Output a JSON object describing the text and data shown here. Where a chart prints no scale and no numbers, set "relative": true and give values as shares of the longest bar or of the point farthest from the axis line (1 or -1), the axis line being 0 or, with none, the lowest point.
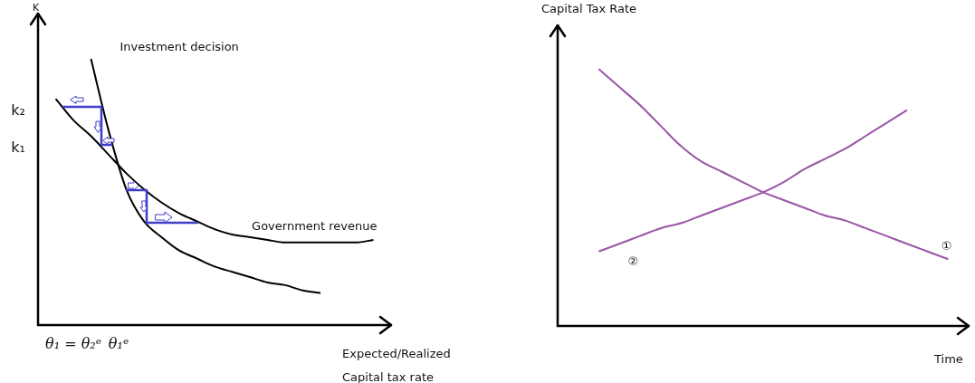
{
  "chart_data": [
    {
      "type": "line",
      "relative": true,
      "marker": "none",
      "ylabel": "K",
      "xlabel": "Expected/Realized Capital tax rate",
      "categories": [
        null,
        null,
        null,
        null,
        null,
        null,
        null,
        null,
        null,
        null,
        null,
        null,
        null,
        null,
        null,
        null,
        null,
        null,
        null,
        null,
        null
      ],
      "series": [
        {
          "name": "Investment decision",
          "color": "#000000",
          "values": [
            null,
            null,
            null,
            1,
            0.73,
            0.51,
            0.39,
            0.33,
            0.28,
            0.25,
            0.22,
            0.2,
            0.18,
            0.16,
            0.15,
            0.13,
            0.12,
            null,
            null,
            null,
            null
          ]
        },
        {
          "name": "Government revenue",
          "color": "#000000",
          "values": [
            null,
            0.85,
            0.77,
            0.71,
            0.64,
            0.57,
            0.51,
            0.46,
            0.42,
            0.39,
            0.36,
            0.34,
            0.33,
            0.32,
            0.31,
            0.31,
            0.31,
            0.31,
            0.31,
            0.32,
            null
          ]
        }
      ],
      "annotations": [
        "k₂",
        "k₁",
        "θ₁ = θ₂ᵉ",
        "θ₁ᵉ"
      ]
    },
    {
      "type": "line",
      "relative": true,
      "marker": "none",
      "ylabel": "Capital Tax Rate",
      "xlabel": "Time",
      "categories": [
        null,
        null,
        null,
        null,
        null,
        null,
        null,
        null,
        null,
        null,
        null,
        null,
        null,
        null,
        null,
        null,
        null,
        null,
        null,
        null,
        null
      ],
      "series": [
        {
          "name": "①",
          "color": "#9b54a8",
          "values": [
            null,
            null,
            1,
            0.93,
            0.86,
            0.78,
            0.7,
            0.64,
            0.6,
            0.56,
            0.52,
            0.49,
            0.46,
            0.43,
            0.41,
            0.38,
            0.35,
            0.32,
            0.29,
            0.26,
            null
          ]
        },
        {
          "name": "②",
          "color": "#9b54a8",
          "values": [
            null,
            null,
            0.29,
            0.32,
            0.35,
            0.38,
            0.4,
            0.43,
            0.46,
            0.49,
            0.52,
            0.56,
            0.61,
            0.65,
            0.69,
            0.74,
            0.79,
            0.84,
            null,
            null,
            null
          ]
        }
      ]
    }
  ]
}
